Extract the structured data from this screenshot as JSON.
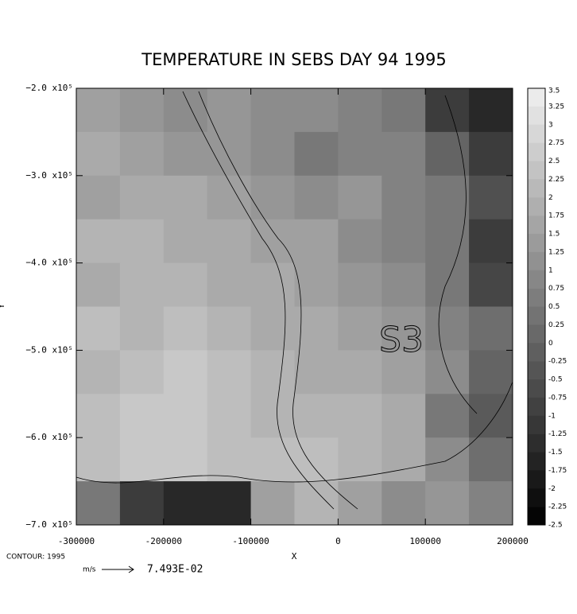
{
  "chart_data": {
    "type": "heatmap",
    "title": "TEMPERATURE IN SEBS DAY 94 1995",
    "xlabel": "X",
    "ylabel": "Y",
    "xlim": [
      -300000,
      200000
    ],
    "ylim": [
      -700000,
      -200000
    ],
    "xticks": [
      -300000,
      -200000,
      -100000,
      0,
      100000,
      200000
    ],
    "yticks": [
      {
        "value": -200000,
        "label": "−2.0 x10⁵"
      },
      {
        "value": -300000,
        "label": "−3.0 x10⁵"
      },
      {
        "value": -400000,
        "label": "−4.0 x10⁵"
      },
      {
        "value": -500000,
        "label": "−5.0 x10⁵"
      },
      {
        "value": -600000,
        "label": "−6.0 x10⁵"
      },
      {
        "value": -700000,
        "label": "−7.0 x10⁵"
      }
    ],
    "z": [
      [
        1.5,
        1.25,
        1.0,
        1.25,
        1.0,
        1.0,
        0.75,
        0.5,
        -1.0,
        -1.5
      ],
      [
        1.75,
        1.5,
        1.25,
        1.25,
        1.0,
        0.5,
        0.75,
        0.75,
        0,
        -1.0
      ],
      [
        1.5,
        1.75,
        1.75,
        1.5,
        1.25,
        1.0,
        1.25,
        0.75,
        0.5,
        -0.5
      ],
      [
        2.0,
        2.0,
        1.75,
        1.75,
        1.5,
        1.5,
        1.0,
        0.75,
        0.5,
        -1.0
      ],
      [
        1.75,
        2.0,
        2.0,
        1.75,
        1.75,
        1.5,
        1.25,
        1.0,
        0.5,
        -0.75
      ],
      [
        2.25,
        2.0,
        2.25,
        2.0,
        1.75,
        1.75,
        1.5,
        1.25,
        0.75,
        0.25
      ],
      [
        2.0,
        2.25,
        2.5,
        2.25,
        2.0,
        1.75,
        1.75,
        1.5,
        1.0,
        0
      ],
      [
        2.25,
        2.5,
        2.5,
        2.25,
        2.0,
        2.0,
        2.0,
        1.75,
        0.5,
        -0.25
      ],
      [
        2.25,
        2.5,
        2.5,
        2.25,
        2.25,
        2.25,
        2.0,
        1.75,
        1.0,
        0.25
      ],
      [
        0.5,
        -1.0,
        -1.5,
        -1.5,
        1.5,
        2.0,
        1.5,
        1.0,
        1.25,
        0.75
      ]
    ],
    "clim": [
      -2.5,
      3.5
    ],
    "levels": [
      3.5,
      3.25,
      3,
      2.75,
      2.5,
      2.25,
      2,
      1.75,
      1.5,
      1.25,
      1,
      0.75,
      0.5,
      0.25,
      0,
      -0.25,
      -0.5,
      -0.75,
      -1,
      -1.25,
      -1.5,
      -1.75,
      -2,
      -2.25,
      -2.5
    ],
    "annotations": [
      "S3",
      "CONTOUR: 1995",
      "m/s",
      "7.493E-02"
    ]
  }
}
